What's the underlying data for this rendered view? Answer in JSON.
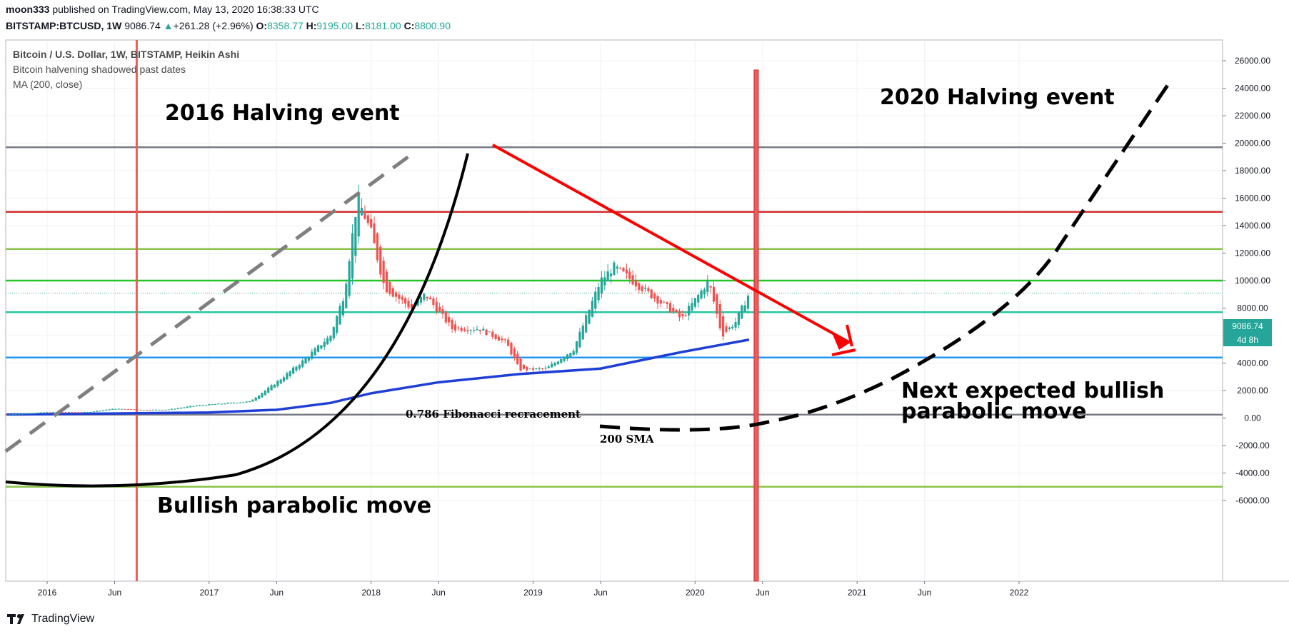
{
  "header": {
    "user": "moon333",
    "published_text": " published on TradingView.com, May 13, 2020 16:38:33 UTC",
    "symbol": "BITSTAMP:BTCUSD, 1W",
    "price": "9086.74",
    "change_arrow": "▲",
    "change": "+261.28 (+2.96%)",
    "o_label": "O:",
    "o_value": "8358.77",
    "h_label": "H:",
    "h_value": "9195.00",
    "l_label": "L:",
    "l_value": "8181.00",
    "c_label": "C:",
    "c_value": "8800.90"
  },
  "legend": {
    "line1": "Bitcoin / U.S. Dollar, 1W, BITSTAMP, Heikin Ashi",
    "line2": "Bitcoin halvening shadowed past dates",
    "line3": "MA (200, close)"
  },
  "annotations": {
    "halving_2016": "2016 Halving event",
    "halving_2020": "2020 Halving event",
    "bullish_move": "Bullish parabolic move",
    "next_move_line1": "Next expected bullish",
    "next_move_line2": "parabolic move",
    "fib": "0.786 Fibonacci recracement",
    "sma": "200 SMA"
  },
  "price_tag": {
    "value": "9086.74",
    "countdown": "4d 8h"
  },
  "footer": {
    "brand": "TradingView"
  },
  "colors": {
    "up": "#26a69a",
    "down": "#ef5350",
    "ma": "#1e3fd6",
    "red_line": "#ff0000",
    "grey_line": "#787b86",
    "lime_line": "#8bc34a",
    "green_line": "#26c426",
    "teal_line": "#26c6a0",
    "blue_line": "#2196f3",
    "darkred_line": "#d32f2f"
  },
  "chart_data": {
    "type": "candlestick",
    "chart_style": "Heikin Ashi",
    "interval": "1W",
    "x_tick_labels": [
      "2016",
      "Jun",
      "2017",
      "Jun",
      "2018",
      "Jun",
      "2019",
      "Jun",
      "2020",
      "Jun",
      "2021",
      "Jun",
      "2022"
    ],
    "y_tick_labels": [
      "26000.00",
      "24000.00",
      "22000.00",
      "20000.00",
      "18000.00",
      "16000.00",
      "14000.00",
      "12000.00",
      "10000.00",
      "8000.00",
      "6000.00",
      "4000.00",
      "2000.00",
      "0.00",
      "-2000.00",
      "-4000.00",
      "-6000.00"
    ],
    "ylim": [
      -6000,
      26000
    ],
    "xlim": [
      "2015-10",
      "2022-06"
    ],
    "horizontal_lines": [
      {
        "price": 19700,
        "color": "grey"
      },
      {
        "price": 15000,
        "color": "darkred"
      },
      {
        "price": 12300,
        "color": "lime"
      },
      {
        "price": 10000,
        "color": "green"
      },
      {
        "price": 7700,
        "color": "teal"
      },
      {
        "price": 4400,
        "color": "blue"
      },
      {
        "price": 250,
        "color": "grey"
      },
      {
        "price": -5000,
        "color": "lime"
      }
    ],
    "halving_dates": [
      "2016-07",
      "2020-05"
    ],
    "price_series": [
      [
        "2015-10",
        250
      ],
      [
        "2016-01",
        420
      ],
      [
        "2016-04",
        430
      ],
      [
        "2016-06",
        680
      ],
      [
        "2016-08",
        580
      ],
      [
        "2016-10",
        620
      ],
      [
        "2016-12",
        900
      ],
      [
        "2017-02",
        1050
      ],
      [
        "2017-04",
        1200
      ],
      [
        "2017-06",
        2600
      ],
      [
        "2017-08",
        4200
      ],
      [
        "2017-10",
        6000
      ],
      [
        "2017-11",
        9000
      ],
      [
        "2017-12",
        16000
      ],
      [
        "2018-01",
        13500
      ],
      [
        "2018-02",
        9500
      ],
      [
        "2018-04",
        8000
      ],
      [
        "2018-05",
        9000
      ],
      [
        "2018-07",
        6500
      ],
      [
        "2018-09",
        6500
      ],
      [
        "2018-11",
        5500
      ],
      [
        "2018-12",
        3500
      ],
      [
        "2019-02",
        3600
      ],
      [
        "2019-04",
        5000
      ],
      [
        "2019-06",
        10000
      ],
      [
        "2019-07",
        11000
      ],
      [
        "2019-09",
        9500
      ],
      [
        "2019-11",
        8000
      ],
      [
        "2019-12",
        7200
      ],
      [
        "2020-02",
        10000
      ],
      [
        "2020-03",
        6000
      ],
      [
        "2020-04",
        7000
      ],
      [
        "2020-05",
        9086
      ]
    ],
    "ma200_series": [
      [
        "2015-10",
        250
      ],
      [
        "2016-06",
        330
      ],
      [
        "2017-01",
        400
      ],
      [
        "2017-06",
        600
      ],
      [
        "2017-10",
        1100
      ],
      [
        "2018-01",
        1800
      ],
      [
        "2018-06",
        2600
      ],
      [
        "2018-12",
        3200
      ],
      [
        "2019-06",
        3600
      ],
      [
        "2019-12",
        4800
      ],
      [
        "2020-05",
        5700
      ]
    ],
    "current_price": 9086.74
  }
}
